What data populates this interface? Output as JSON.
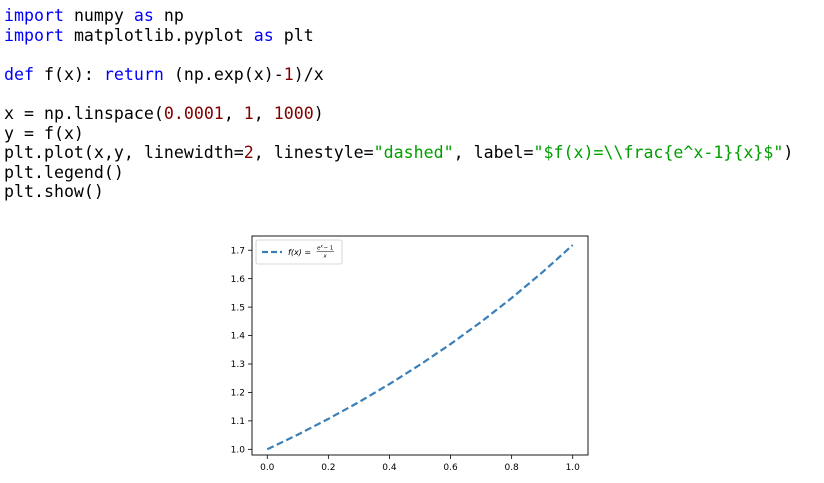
{
  "code": {
    "lines": [
      [
        {
          "t": "import",
          "c": "kw"
        },
        {
          "t": " numpy "
        },
        {
          "t": "as",
          "c": "kw"
        },
        {
          "t": " np"
        }
      ],
      [
        {
          "t": "import",
          "c": "kw"
        },
        {
          "t": " matplotlib.pyplot "
        },
        {
          "t": "as",
          "c": "kw"
        },
        {
          "t": " plt"
        }
      ],
      [],
      [
        {
          "t": "def",
          "c": "kw"
        },
        {
          "t": " f(x): "
        },
        {
          "t": "return",
          "c": "kw"
        },
        {
          "t": " (np.exp(x)-"
        },
        {
          "t": "1",
          "c": "num"
        },
        {
          "t": ")/x"
        }
      ],
      [],
      [
        {
          "t": "x = np.linspace("
        },
        {
          "t": "0.0001",
          "c": "num"
        },
        {
          "t": ", "
        },
        {
          "t": "1",
          "c": "num"
        },
        {
          "t": ", "
        },
        {
          "t": "1000",
          "c": "num"
        },
        {
          "t": ")"
        }
      ],
      [
        {
          "t": "y = f(x)"
        }
      ],
      [
        {
          "t": "plt.plot(x,y, linewidth="
        },
        {
          "t": "2",
          "c": "num"
        },
        {
          "t": ", linestyle="
        },
        {
          "t": "\"dashed\"",
          "c": "str"
        },
        {
          "t": ", label="
        },
        {
          "t": "\"$f(x)=\\\\frac{e^x-1}{x}$\"",
          "c": "str"
        },
        {
          "t": ")"
        }
      ],
      [
        {
          "t": "plt.legend()"
        }
      ],
      [
        {
          "t": "plt.show()"
        }
      ]
    ]
  },
  "chart_data": {
    "type": "line",
    "series": [
      {
        "name": "f(x) = (e^x - 1)/x",
        "style": "dashed",
        "color": "#3a7fb8",
        "x": [
          0.0001,
          0.1,
          0.2,
          0.3,
          0.4,
          0.5,
          0.6,
          0.7,
          0.8,
          0.9,
          1.0
        ],
        "y": [
          1.0,
          1.0517,
          1.107,
          1.166,
          1.2296,
          1.2974,
          1.3701,
          1.4479,
          1.5319,
          1.6218,
          1.7183
        ]
      }
    ],
    "xlim": [
      -0.05,
      1.05
    ],
    "ylim": [
      0.98,
      1.75
    ],
    "xticks": [
      0.0,
      0.2,
      0.4,
      0.6,
      0.8,
      1.0
    ],
    "xtick_labels": [
      "0.0",
      "0.2",
      "0.4",
      "0.6",
      "0.8",
      "1.0"
    ],
    "yticks": [
      1.0,
      1.1,
      1.2,
      1.3,
      1.4,
      1.5,
      1.6,
      1.7
    ],
    "ytick_labels": [
      "1.0",
      "1.1",
      "1.2",
      "1.3",
      "1.4",
      "1.5",
      "1.6",
      "1.7"
    ],
    "legend_position": "top-left",
    "grid": false
  }
}
